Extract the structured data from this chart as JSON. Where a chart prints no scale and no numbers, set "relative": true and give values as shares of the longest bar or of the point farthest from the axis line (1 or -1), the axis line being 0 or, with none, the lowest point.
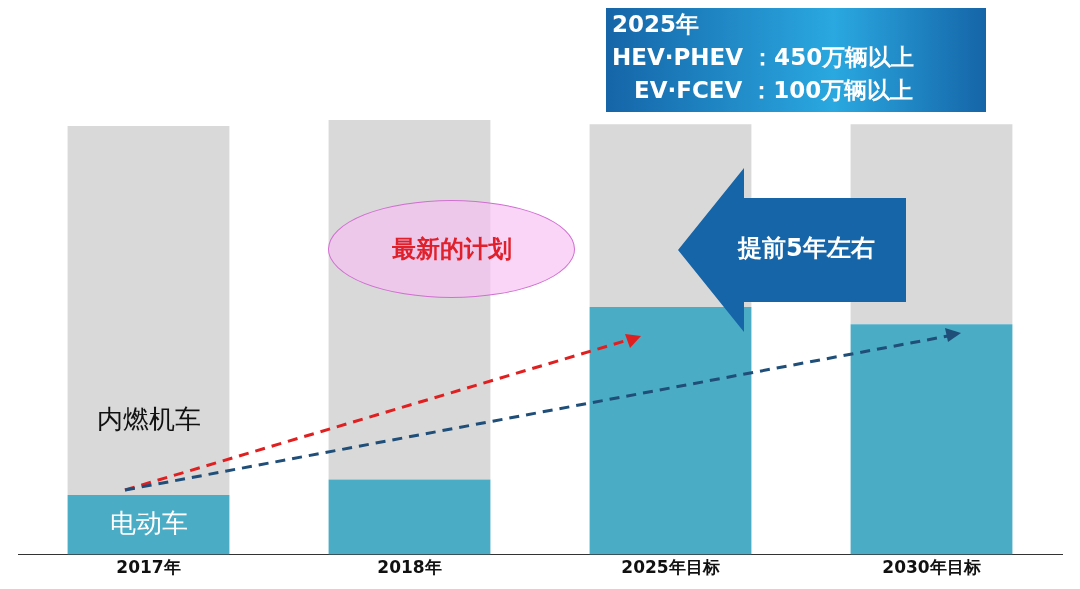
{
  "chart_data": {
    "type": "bar",
    "stacked": true,
    "relative": true,
    "categories": [
      "2017年",
      "2018年",
      "2025年目标",
      "2030年目标"
    ],
    "series": [
      {
        "name": "电动车",
        "color": "#4bacc6",
        "values": [
          0.137,
          0.173,
          0.57,
          0.53
        ]
      },
      {
        "name": "内燃机车",
        "color": "#d9d9d9",
        "values": [
          0.849,
          0.827,
          0.42,
          0.46
        ]
      }
    ],
    "legend": false,
    "grid": false,
    "annotations": [
      "2025年",
      "HEV·PHEV ：450万辆以上",
      "EV·FCEV ：100万辆以上",
      "最新的计划",
      "提前5年左右"
    ]
  }
}
